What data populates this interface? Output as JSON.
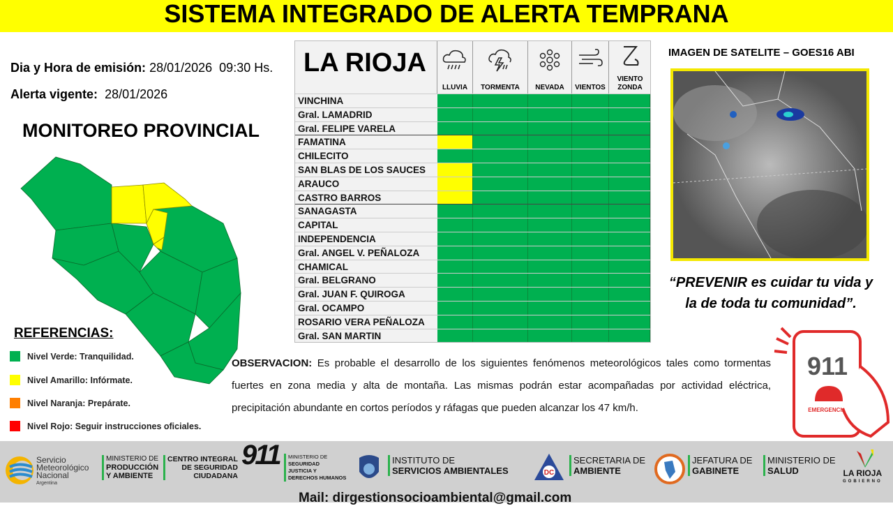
{
  "title": "SISTEMA INTEGRADO DE ALERTA TEMPRANA",
  "emission": {
    "label": "Dia y Hora de emisión:",
    "value": "28/01/2026  09:30 Hs."
  },
  "alert": {
    "label": "Alerta vigente:",
    "value": "28/01/2026"
  },
  "monitoreo": "MONITOREO PROVINCIAL",
  "references": {
    "title": "REFERENCIAS:",
    "items": [
      {
        "label": "Nivel Verde: Tranquilidad.",
        "color": "#00b050"
      },
      {
        "label": "Nivel Amarillo: Infórmate.",
        "color": "#ffff00"
      },
      {
        "label": "Nivel Naranja: Prepárate.",
        "color": "#ff7f00"
      },
      {
        "label": "Nivel Rojo: Seguir instrucciones oficiales.",
        "color": "#ff0000"
      }
    ]
  },
  "table": {
    "province": "LA RIOJA",
    "columns": [
      {
        "label": "LLUVIA",
        "icon": "rain-icon"
      },
      {
        "label": "TORMENTA",
        "icon": "storm-icon"
      },
      {
        "label": "NEVADA",
        "icon": "snow-icon"
      },
      {
        "label": "VIENTOS",
        "icon": "wind-icon"
      },
      {
        "label": "VIENTO ZONDA",
        "icon": "zonda-icon"
      }
    ],
    "rows": [
      {
        "name": "VINCHINA",
        "levels": [
          "verde",
          "verde",
          "verde",
          "verde",
          "verde"
        ]
      },
      {
        "name": "Gral. LAMADRID",
        "levels": [
          "verde",
          "verde",
          "verde",
          "verde",
          "verde"
        ]
      },
      {
        "name": "Gral. FELIPE VARELA",
        "levels": [
          "verde",
          "verde",
          "verde",
          "verde",
          "verde"
        ]
      },
      {
        "name": "FAMATINA",
        "levels": [
          "amarillo",
          "verde",
          "verde",
          "verde",
          "verde"
        ]
      },
      {
        "name": "CHILECITO",
        "levels": [
          "verde",
          "verde",
          "verde",
          "verde",
          "verde"
        ]
      },
      {
        "name": "SAN BLAS DE LOS SAUCES",
        "levels": [
          "amarillo",
          "verde",
          "verde",
          "verde",
          "verde"
        ]
      },
      {
        "name": "ARAUCO",
        "levels": [
          "amarillo",
          "verde",
          "verde",
          "verde",
          "verde"
        ]
      },
      {
        "name": "CASTRO BARROS",
        "levels": [
          "amarillo",
          "verde",
          "verde",
          "verde",
          "verde"
        ]
      },
      {
        "name": "SANAGASTA",
        "levels": [
          "verde",
          "verde",
          "verde",
          "verde",
          "verde"
        ]
      },
      {
        "name": "CAPITAL",
        "levels": [
          "verde",
          "verde",
          "verde",
          "verde",
          "verde"
        ]
      },
      {
        "name": "INDEPENDENCIA",
        "levels": [
          "verde",
          "verde",
          "verde",
          "verde",
          "verde"
        ]
      },
      {
        "name": "Gral. ANGEL V. PEÑALOZA",
        "levels": [
          "verde",
          "verde",
          "verde",
          "verde",
          "verde"
        ]
      },
      {
        "name": "CHAMICAL",
        "levels": [
          "verde",
          "verde",
          "verde",
          "verde",
          "verde"
        ]
      },
      {
        "name": "Gral. BELGRANO",
        "levels": [
          "verde",
          "verde",
          "verde",
          "verde",
          "verde"
        ]
      },
      {
        "name": "Gral. JUAN F. QUIROGA",
        "levels": [
          "verde",
          "verde",
          "verde",
          "verde",
          "verde"
        ]
      },
      {
        "name": "Gral. OCAMPO",
        "levels": [
          "verde",
          "verde",
          "verde",
          "verde",
          "verde"
        ]
      },
      {
        "name": "ROSARIO VERA PEÑALOZA",
        "levels": [
          "verde",
          "verde",
          "verde",
          "verde",
          "verde"
        ]
      },
      {
        "name": "Gral. SAN MARTIN",
        "levels": [
          "verde",
          "verde",
          "verde",
          "verde",
          "verde"
        ]
      }
    ]
  },
  "level_colors": {
    "verde": "#00b050",
    "amarillo": "#ffff00"
  },
  "satellite": {
    "title": "IMAGEN DE SATELITE – GOES16 ABI"
  },
  "slogan": {
    "bold": "“PREVENIR",
    "rest": " es cuidar tu vida y la de toda tu comunidad”."
  },
  "observacion": {
    "label": "OBSERVACION:",
    "text": " Es probable el desarrollo de los siguientes fenómenos meteorológicos tales como tormentas fuertes en zona media y alta de montaña. Las mismas podrán estar acompañadas por actividad eléctrica, precipitación abundante en cortos períodos y ráfagas que pueden alcanzar los 47 km/h."
  },
  "emergency_logo": {
    "number": "911",
    "label": "EMERGENCIAS"
  },
  "footer": {
    "smn": [
      "Servicio",
      "Meteorológico",
      "Nacional",
      "Argentina"
    ],
    "produccion": [
      "MINISTERIO DE",
      "PRODUCCIÓN",
      "Y AMBIENTE"
    ],
    "centro": [
      "CENTRO INTEGRAL",
      "DE SEGURIDAD",
      "CIUDADANA"
    ],
    "centro_num": "911",
    "seguridad": [
      "MINISTERIO DE",
      "SEGURIDAD",
      "JUSTICIA Y",
      "DERECHOS HUMANOS"
    ],
    "instituto": [
      "INSTITUTO DE",
      "SERVICIOS AMBIENTALES"
    ],
    "secretaria": [
      "SECRETARIA DE",
      "AMBIENTE"
    ],
    "jefatura": [
      "JEFATURA DE",
      "GABINETE"
    ],
    "salud": [
      "MINISTERIO DE",
      "SALUD"
    ],
    "gobierno": [
      "LA RIOJA",
      "GOBIERNO"
    ],
    "mail": "Mail: dirgestionsocioambiental@gmail.com"
  }
}
